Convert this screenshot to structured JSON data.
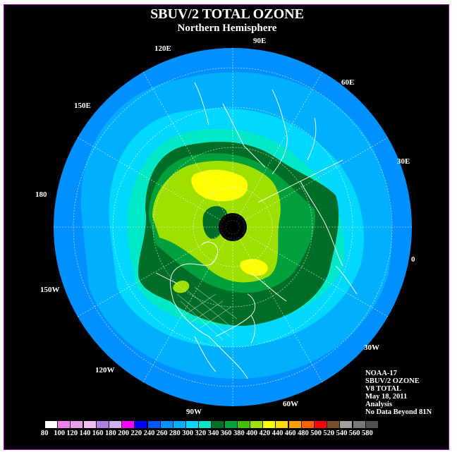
{
  "title": "SBUV/2 TOTAL OZONE",
  "subtitle": "Northern Hemisphere",
  "longitude_labels": [
    {
      "text": "90E",
      "name": "label-90e"
    },
    {
      "text": "60E",
      "name": "label-60e"
    },
    {
      "text": "120E",
      "name": "label-120e"
    },
    {
      "text": "150E",
      "name": "label-150e"
    },
    {
      "text": "30E",
      "name": "label-30e"
    },
    {
      "text": "180",
      "name": "label-180"
    },
    {
      "text": "0",
      "name": "label-0"
    },
    {
      "text": "150W",
      "name": "label-150w"
    },
    {
      "text": "30W",
      "name": "label-30w"
    },
    {
      "text": "120W",
      "name": "label-120w"
    },
    {
      "text": "60W",
      "name": "label-60w"
    },
    {
      "text": "90W",
      "name": "label-90w"
    }
  ],
  "info": {
    "satellite": "NOAA-17",
    "product": "SBUV/2 OZONE",
    "version": "V8 TOTAL",
    "date": "May 18, 2011",
    "type": "Analysis",
    "note": "No Data Beyond 81N"
  },
  "colorbar": {
    "labels": [
      "80",
      "100",
      "120",
      "140",
      "160",
      "180",
      "200",
      "220",
      "240",
      "260",
      "280",
      "300",
      "320",
      "340",
      "360",
      "380",
      "400",
      "420",
      "440",
      "460",
      "480",
      "500",
      "520",
      "540",
      "560",
      "580"
    ],
    "colors": [
      "#ffffff",
      "#f07ff0",
      "#e8a0e8",
      "#f0c0f0",
      "#b080e0",
      "#d0b0f0",
      "#ff00ff",
      "#0000ff",
      "#0055ff",
      "#0090ff",
      "#00b0ff",
      "#00d8ff",
      "#00e8c8",
      "#006e28",
      "#00a03c",
      "#40c000",
      "#a0e000",
      "#ffff00",
      "#ffd800",
      "#ffa000",
      "#ff6000",
      "#ff0000",
      "#785028",
      "#a0a0a0",
      "#787878",
      "#505050"
    ]
  },
  "colors": {
    "background": "#000000",
    "frame": "#a000a0",
    "ocean_blue": "#0090ff",
    "ozone_300": "#00b0ff",
    "ozone_320": "#00d8ff",
    "ozone_340": "#00e8c8",
    "ozone_360": "#006e28",
    "ozone_380": "#00a03c",
    "ozone_400": "#a0e000",
    "ozone_420": "#ffff00"
  }
}
